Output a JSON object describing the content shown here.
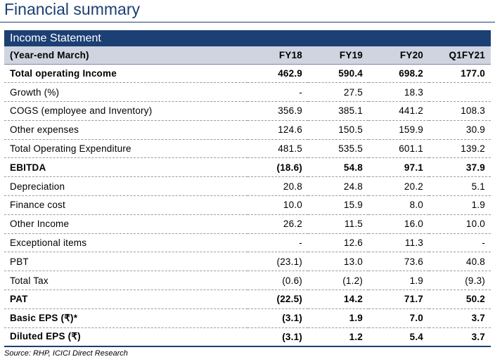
{
  "title": "Financial summary",
  "statement_label": "Income Statement",
  "columns": [
    "(Year-end March)",
    "FY18",
    "FY19",
    "FY20",
    "Q1FY21"
  ],
  "rows": [
    {
      "label": "Total operating Income",
      "values": [
        "462.9",
        "590.4",
        "698.2",
        "177.0"
      ],
      "bold": true
    },
    {
      "label": "Growth (%)",
      "values": [
        "-",
        "27.5",
        "18.3",
        ""
      ],
      "bold": false
    },
    {
      "label": "COGS (employee and Inventory)",
      "values": [
        "356.9",
        "385.1",
        "441.2",
        "108.3"
      ],
      "bold": false
    },
    {
      "label": "Other expenses",
      "values": [
        "124.6",
        "150.5",
        "159.9",
        "30.9"
      ],
      "bold": false
    },
    {
      "label": "Total Operating Expenditure",
      "values": [
        "481.5",
        "535.5",
        "601.1",
        "139.2"
      ],
      "bold": false
    },
    {
      "label": "EBITDA",
      "values": [
        "(18.6)",
        "54.8",
        "97.1",
        "37.9"
      ],
      "bold": true
    },
    {
      "label": "Depreciation",
      "values": [
        "20.8",
        "24.8",
        "20.2",
        "5.1"
      ],
      "bold": false
    },
    {
      "label": "Finance cost",
      "values": [
        "10.0",
        "15.9",
        "8.0",
        "1.9"
      ],
      "bold": false
    },
    {
      "label": "Other Income",
      "values": [
        "26.2",
        "11.5",
        "16.0",
        "10.0"
      ],
      "bold": false
    },
    {
      "label": "Exceptional items",
      "values": [
        "-",
        "12.6",
        "11.3",
        "-"
      ],
      "bold": false
    },
    {
      "label": "PBT",
      "values": [
        "(23.1)",
        "13.0",
        "73.6",
        "40.8"
      ],
      "bold": false
    },
    {
      "label": "Total Tax",
      "values": [
        "(0.6)",
        "(1.2)",
        "1.9",
        "(9.3)"
      ],
      "bold": false
    },
    {
      "label": "PAT",
      "values": [
        "(22.5)",
        "14.2",
        "71.7",
        "50.2"
      ],
      "bold": true
    },
    {
      "label": "Basic EPS (₹)*",
      "values": [
        "(3.1)",
        "1.9",
        "7.0",
        "3.7"
      ],
      "bold": true
    },
    {
      "label": "Diluted EPS (₹)",
      "values": [
        "(3.1)",
        "1.2",
        "5.4",
        "3.7"
      ],
      "bold": true
    }
  ],
  "source": "Source: RHP, ICICI Direct Research",
  "colors": {
    "accent": "#1c3f74",
    "header_bg": "#cfd4e0"
  }
}
